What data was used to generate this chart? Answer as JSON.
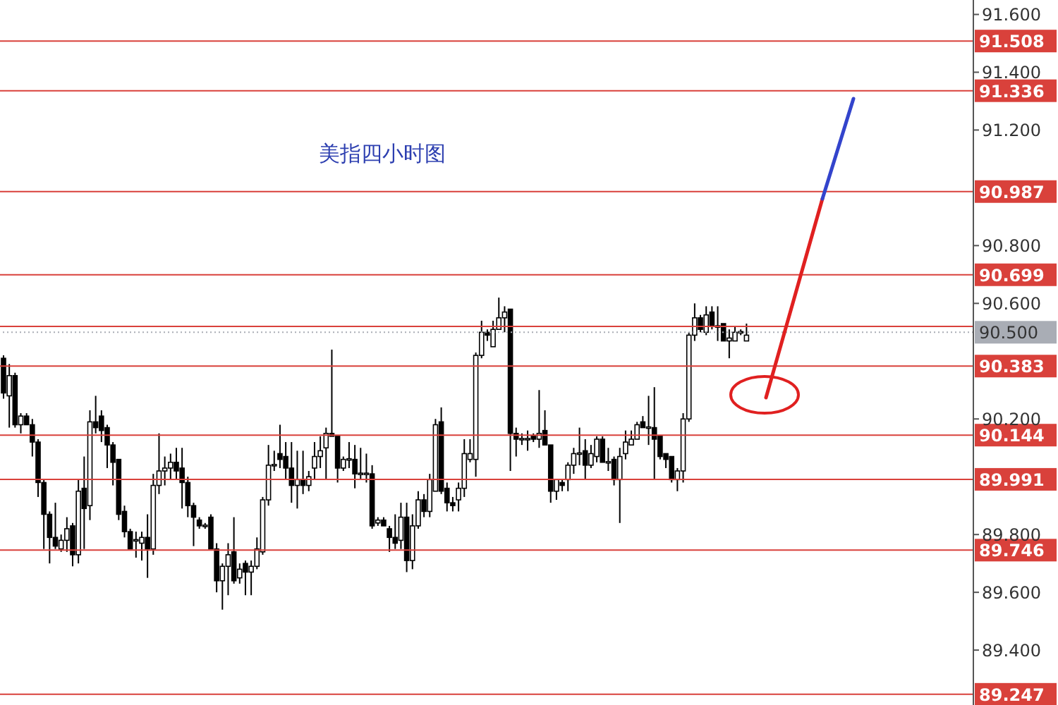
{
  "chart_data": {
    "type": "candlestick",
    "title": "美指四小时图",
    "color": "#000000",
    "tick_labels": "y",
    "categories": [
      null,
      null,
      null,
      null,
      null,
      null,
      null,
      null,
      null,
      null,
      null,
      null,
      null,
      null,
      null,
      null,
      null,
      null,
      null,
      null,
      null,
      null,
      null,
      null,
      null,
      null,
      null,
      null,
      null,
      null,
      null,
      null,
      null,
      null,
      null,
      null,
      null,
      null,
      null,
      null,
      null,
      null,
      null,
      null,
      null,
      null,
      null,
      null,
      null,
      null,
      null,
      null,
      null,
      null,
      null,
      null,
      null,
      null,
      null,
      null,
      null,
      null,
      null,
      null,
      null,
      null,
      null,
      null,
      null,
      null,
      null,
      null,
      null,
      null,
      null,
      null,
      null,
      null,
      null,
      null,
      null,
      null,
      null,
      null,
      null,
      null,
      null,
      null,
      null,
      null,
      null,
      null,
      null,
      null,
      null,
      null,
      null,
      null,
      null,
      null,
      null,
      null,
      null,
      null,
      null,
      null,
      null,
      null,
      null,
      null,
      null,
      null,
      null,
      null,
      null,
      null,
      null,
      null,
      null,
      null,
      null,
      null,
      null,
      null,
      null,
      null,
      null,
      null,
      null,
      null,
      null,
      null,
      null,
      null,
      null,
      null,
      null,
      null,
      null,
      null,
      null,
      null,
      null,
      null,
      null,
      null,
      null,
      null,
      null,
      null,
      null,
      null,
      null,
      null,
      null,
      null,
      null,
      null,
      null,
      null,
      null,
      null,
      null,
      null,
      null,
      null,
      null,
      null,
      null
    ],
    "ohlc": [
      [
        90.41,
        90.42,
        90.27,
        90.29
      ],
      [
        90.28,
        90.39,
        90.17,
        90.35
      ],
      [
        90.35,
        90.36,
        90.17,
        90.18
      ],
      [
        90.18,
        90.22,
        90.15,
        90.21
      ],
      [
        90.21,
        90.22,
        90.18,
        90.18
      ],
      [
        90.18,
        90.2,
        90.07,
        90.12
      ],
      [
        90.12,
        90.13,
        89.93,
        89.98
      ],
      [
        89.98,
        89.99,
        89.75,
        89.87
      ],
      [
        89.87,
        89.88,
        89.7,
        89.79
      ],
      [
        89.79,
        89.91,
        89.75,
        89.76
      ],
      [
        89.75,
        89.8,
        89.74,
        89.78
      ],
      [
        89.78,
        89.86,
        89.74,
        89.82
      ],
      [
        89.83,
        89.84,
        89.69,
        89.73
      ],
      [
        89.73,
        89.99,
        89.7,
        89.95
      ],
      [
        89.96,
        90.07,
        89.75,
        89.89
      ],
      [
        89.9,
        90.23,
        89.85,
        90.19
      ],
      [
        90.19,
        90.28,
        90.15,
        90.17
      ],
      [
        90.21,
        90.23,
        90.12,
        90.16
      ],
      [
        90.17,
        90.18,
        90.03,
        90.11
      ],
      [
        90.11,
        90.12,
        89.97,
        90.05
      ],
      [
        90.06,
        90.06,
        89.85,
        89.87
      ],
      [
        89.88,
        89.9,
        89.79,
        89.81
      ],
      [
        89.81,
        89.82,
        89.75,
        89.75
      ],
      [
        89.78,
        89.81,
        89.72,
        89.78
      ],
      [
        89.77,
        89.81,
        89.71,
        89.79
      ],
      [
        89.79,
        89.87,
        89.65,
        89.75
      ],
      [
        89.75,
        90.01,
        89.73,
        89.97
      ],
      [
        89.97,
        90.15,
        89.94,
        90.02
      ],
      [
        90.02,
        90.07,
        89.97,
        90.03
      ],
      [
        90.03,
        90.08,
        89.99,
        90.05
      ],
      [
        90.05,
        90.1,
        89.99,
        90.02
      ],
      [
        90.03,
        90.1,
        89.89,
        89.98
      ],
      [
        89.98,
        90.0,
        89.86,
        89.9
      ],
      [
        89.9,
        89.91,
        89.76,
        89.86
      ],
      [
        89.85,
        89.86,
        89.82,
        89.83
      ],
      [
        89.83,
        89.84,
        89.82,
        89.83
      ],
      [
        89.86,
        89.87,
        89.75,
        89.75
      ],
      [
        89.75,
        89.77,
        89.6,
        89.64
      ],
      [
        89.64,
        89.7,
        89.54,
        89.69
      ],
      [
        89.69,
        89.77,
        89.59,
        89.73
      ],
      [
        89.74,
        89.86,
        89.63,
        89.64
      ],
      [
        89.65,
        89.7,
        89.63,
        89.68
      ],
      [
        89.7,
        89.71,
        89.59,
        89.67
      ],
      [
        89.67,
        89.71,
        89.59,
        89.69
      ],
      [
        89.69,
        89.79,
        89.68,
        89.75
      ],
      [
        89.74,
        89.93,
        89.73,
        89.92
      ],
      [
        89.92,
        90.11,
        89.9,
        90.04
      ],
      [
        90.04,
        90.09,
        90.02,
        90.04
      ],
      [
        90.08,
        90.18,
        90.03,
        90.06
      ],
      [
        90.07,
        90.12,
        89.99,
        90.03
      ],
      [
        90.03,
        90.12,
        89.91,
        89.97
      ],
      [
        89.97,
        90.09,
        89.89,
        89.99
      ],
      [
        89.99,
        90.09,
        89.94,
        89.97
      ],
      [
        89.97,
        90.02,
        89.95,
        90.0
      ],
      [
        90.03,
        90.12,
        89.99,
        90.07
      ],
      [
        90.07,
        90.14,
        90.03,
        90.09
      ],
      [
        90.1,
        90.17,
        89.99,
        90.15
      ],
      [
        90.15,
        90.44,
        90.14,
        90.14
      ],
      [
        90.14,
        90.14,
        89.98,
        90.03
      ],
      [
        90.03,
        90.07,
        90.02,
        90.06
      ],
      [
        90.06,
        90.12,
        90.03,
        90.06
      ],
      [
        90.06,
        90.11,
        89.96,
        90.01
      ],
      [
        90.01,
        90.1,
        89.99,
        90.01
      ],
      [
        90.01,
        90.08,
        89.98,
        90.01
      ],
      [
        90.01,
        90.04,
        89.82,
        89.83
      ],
      [
        89.84,
        89.86,
        89.83,
        89.85
      ],
      [
        89.85,
        89.86,
        89.83,
        89.83
      ],
      [
        89.82,
        89.83,
        89.74,
        89.79
      ],
      [
        89.79,
        89.87,
        89.75,
        89.77
      ],
      [
        89.78,
        89.91,
        89.75,
        89.86
      ],
      [
        89.86,
        89.91,
        89.67,
        89.71
      ],
      [
        89.71,
        89.87,
        89.68,
        89.83
      ],
      [
        89.83,
        89.95,
        89.82,
        89.92
      ],
      [
        89.92,
        89.94,
        89.86,
        89.88
      ],
      [
        89.88,
        90.01,
        89.86,
        89.99
      ],
      [
        89.95,
        90.2,
        89.95,
        90.18
      ],
      [
        90.19,
        90.24,
        89.94,
        89.95
      ],
      [
        89.96,
        89.98,
        89.88,
        89.91
      ],
      [
        89.91,
        89.93,
        89.88,
        89.9
      ],
      [
        89.92,
        89.98,
        89.88,
        89.96
      ],
      [
        89.96,
        90.13,
        89.93,
        90.08
      ],
      [
        90.06,
        90.13,
        90.05,
        90.08
      ],
      [
        90.06,
        90.43,
        90.0,
        90.42
      ],
      [
        90.42,
        90.54,
        90.41,
        90.5
      ],
      [
        90.5,
        90.51,
        90.47,
        90.49
      ],
      [
        90.45,
        90.54,
        90.45,
        90.51
      ],
      [
        90.51,
        90.62,
        90.51,
        90.55
      ],
      [
        90.55,
        90.59,
        90.5,
        90.57
      ],
      [
        90.58,
        90.58,
        90.02,
        90.15
      ],
      [
        90.15,
        90.17,
        90.07,
        90.13
      ],
      [
        90.13,
        90.15,
        90.11,
        90.13
      ],
      [
        90.13,
        90.16,
        90.09,
        90.13
      ],
      [
        90.14,
        90.15,
        90.12,
        90.13
      ],
      [
        90.13,
        90.3,
        90.1,
        90.15
      ],
      [
        90.16,
        90.23,
        90.11,
        90.11
      ],
      [
        90.11,
        90.11,
        89.91,
        89.95
      ],
      [
        89.95,
        89.99,
        89.92,
        89.99
      ],
      [
        89.98,
        89.99,
        89.95,
        89.97
      ],
      [
        89.99,
        90.05,
        89.95,
        90.04
      ],
      [
        90.04,
        90.1,
        90.01,
        90.08
      ],
      [
        90.08,
        90.17,
        90.04,
        90.08
      ],
      [
        90.09,
        90.13,
        89.99,
        90.04
      ],
      [
        90.04,
        90.11,
        90.03,
        90.08
      ],
      [
        90.07,
        90.14,
        90.05,
        90.13
      ],
      [
        90.13,
        90.14,
        90.05,
        90.05
      ],
      [
        90.05,
        90.1,
        90.02,
        90.05
      ],
      [
        90.06,
        90.07,
        89.97,
        89.99
      ],
      [
        89.99,
        90.1,
        89.84,
        90.07
      ],
      [
        90.08,
        90.16,
        90.06,
        90.12
      ],
      [
        90.11,
        90.16,
        90.11,
        90.13
      ],
      [
        90.13,
        90.19,
        90.13,
        90.18
      ],
      [
        90.19,
        90.21,
        90.17,
        90.17
      ],
      [
        90.17,
        90.28,
        90.11,
        90.17
      ],
      [
        90.17,
        90.31,
        89.99,
        90.13
      ],
      [
        90.14,
        90.14,
        90.06,
        90.07
      ],
      [
        90.08,
        90.08,
        90.03,
        90.06
      ],
      [
        90.07,
        90.07,
        89.98,
        89.99
      ],
      [
        89.99,
        90.03,
        89.95,
        90.02
      ],
      [
        90.02,
        90.22,
        89.98,
        90.2
      ],
      [
        90.2,
        90.5,
        90.19,
        90.49
      ],
      [
        90.49,
        90.6,
        90.47,
        90.55
      ],
      [
        90.55,
        90.56,
        90.5,
        90.51
      ],
      [
        90.5,
        90.59,
        90.49,
        90.56
      ],
      [
        90.57,
        90.59,
        90.51,
        90.52
      ],
      [
        90.52,
        90.59,
        90.47,
        90.52
      ],
      [
        90.53,
        90.53,
        90.47,
        90.47
      ],
      [
        90.47,
        90.51,
        90.41,
        90.48
      ],
      [
        90.47,
        90.52,
        90.47,
        90.5
      ],
      [
        90.5,
        90.51,
        90.49,
        90.5
      ],
      [
        90.47,
        90.53,
        90.47,
        90.49
      ],
      null,
      null,
      null,
      null,
      null,
      null,
      null,
      null,
      null,
      null,
      null,
      null,
      null,
      null,
      null,
      null,
      null,
      null,
      null,
      null,
      null,
      null,
      null,
      null,
      null,
      null,
      null,
      null,
      null,
      null,
      null,
      null,
      null,
      null,
      null,
      null,
      null,
      null,
      null
    ],
    "ylim": [
      89.21,
      91.65
    ],
    "yticks": [
      {
        "value": 89.4,
        "label": "89.400"
      },
      {
        "value": 89.6,
        "label": "89.600"
      },
      {
        "value": 89.8,
        "label": "89.800"
      },
      {
        "value": 90.2,
        "label": "90.200"
      },
      {
        "value": 90.6,
        "label": "90.600"
      },
      {
        "value": 90.8,
        "label": "90.800"
      },
      {
        "value": 91.2,
        "label": "91.200"
      },
      {
        "value": 91.4,
        "label": "91.400"
      },
      {
        "value": 91.6,
        "label": "91.600"
      }
    ],
    "ref_lines": [
      {
        "axis": "y",
        "value": 91.508,
        "label": "91.508",
        "color": "#d9413b"
      },
      {
        "axis": "y",
        "value": 91.336,
        "label": "91.336",
        "color": "#d9413b"
      },
      {
        "axis": "y",
        "value": 90.987,
        "label": "90.987",
        "color": "#d9413b"
      },
      {
        "axis": "y",
        "value": 90.699,
        "label": "90.699",
        "color": "#d9413b"
      },
      {
        "axis": "y",
        "value": 90.52,
        "label": null,
        "color": "#d9413b"
      },
      {
        "axis": "y",
        "value": 90.5,
        "label": "90.500",
        "color": "#a9adb5",
        "line_style": "dotted"
      },
      {
        "axis": "y",
        "value": 90.383,
        "label": "90.383",
        "color": "#d9413b"
      },
      {
        "axis": "y",
        "value": 90.144,
        "label": "90.144",
        "color": "#d9413b"
      },
      {
        "axis": "y",
        "value": 89.991,
        "label": "89.991",
        "color": "#d9413b"
      },
      {
        "axis": "y",
        "value": 89.746,
        "label": "89.746",
        "color": "#d9413b"
      },
      {
        "axis": "y",
        "value": 89.247,
        "label": "89.247",
        "color": "#d9413b"
      }
    ]
  }
}
